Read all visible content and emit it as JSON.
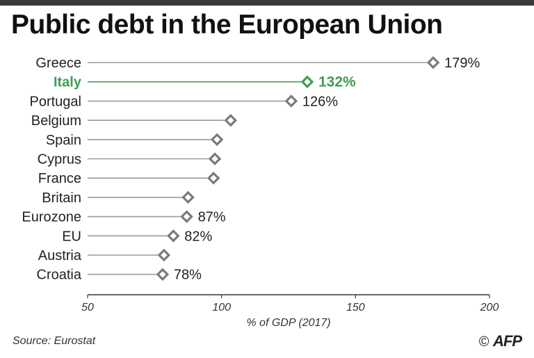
{
  "title": "Public debt in the European Union",
  "source": "Source: Eurostat",
  "credit": {
    "symbol": "©",
    "brand": "AFP"
  },
  "colors": {
    "default": "#7a7a7a",
    "highlight": "#3f9e53",
    "label": "#222222"
  },
  "chart_data": {
    "type": "dot",
    "title": "Public debt in the European Union",
    "xlabel": "% of GDP (2017)",
    "xlim": [
      50,
      200
    ],
    "xticks": [
      50,
      100,
      150,
      200
    ],
    "grid": false,
    "highlight": "Italy",
    "points": [
      {
        "category": "Greece",
        "value": 179,
        "label": "179%"
      },
      {
        "category": "Italy",
        "value": 132,
        "label": "132%"
      },
      {
        "category": "Portugal",
        "value": 126,
        "label": "126%"
      },
      {
        "category": "Belgium",
        "value": 103.4,
        "label": ""
      },
      {
        "category": "Spain",
        "value": 98.3,
        "label": ""
      },
      {
        "category": "Cyprus",
        "value": 97.5,
        "label": ""
      },
      {
        "category": "France",
        "value": 97,
        "label": ""
      },
      {
        "category": "Britain",
        "value": 87.5,
        "label": ""
      },
      {
        "category": "Eurozone",
        "value": 87,
        "label": "87%"
      },
      {
        "category": "EU",
        "value": 82,
        "label": "82%"
      },
      {
        "category": "Austria",
        "value": 78.5,
        "label": ""
      },
      {
        "category": "Croatia",
        "value": 78,
        "label": "78%"
      }
    ]
  }
}
